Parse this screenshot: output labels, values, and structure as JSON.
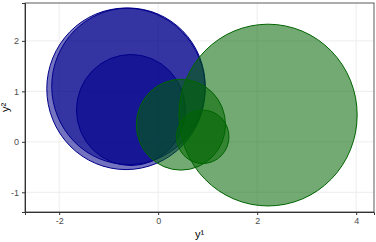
{
  "chart_data": {
    "type": "scatter",
    "marker": "circle",
    "x_label": "y¹",
    "y_label": "y²",
    "xlim": [
      -2.69,
      4.36
    ],
    "ylim": [
      -1.39,
      2.75
    ],
    "xticks": [
      -2,
      0,
      2,
      4
    ],
    "yticks": [
      -1,
      0,
      1,
      2
    ],
    "grid": true,
    "series": [
      {
        "color": "#00008b",
        "x": [
          -0.65,
          -0.6,
          -0.55
        ],
        "values": [
          1.05,
          1.1,
          0.63
        ],
        "r": [
          1.6,
          1.55,
          1.1
        ]
      },
      {
        "color": "#006400",
        "x": [
          2.22,
          0.46,
          0.9
        ],
        "values": [
          0.53,
          0.34,
          0.1
        ],
        "r": [
          1.8,
          0.9,
          0.53
        ]
      }
    ]
  }
}
